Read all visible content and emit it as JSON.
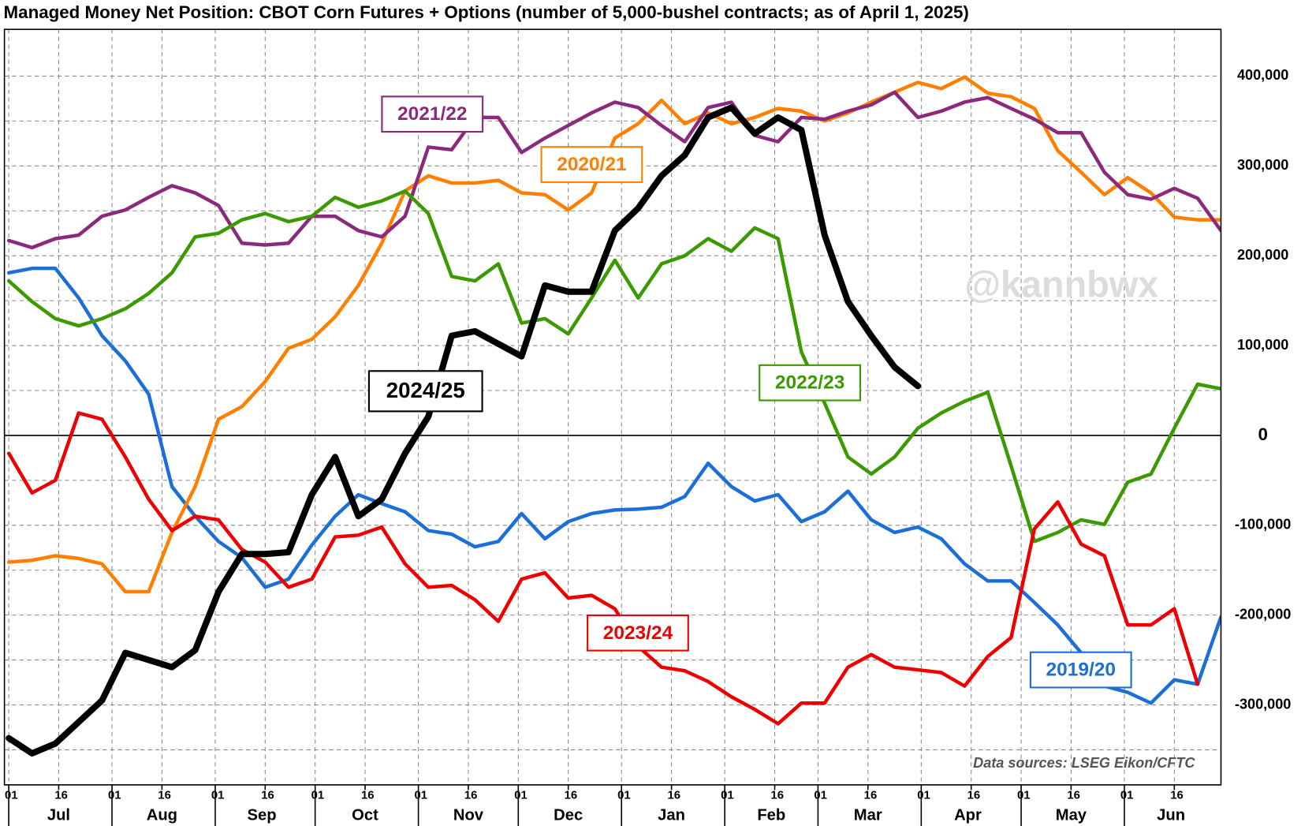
{
  "chart_data": {
    "type": "line",
    "title": "Managed Money Net Position: CBOT Corn Futures + Options (number of 5,000-bushel contracts; as of April 1, 2025)",
    "watermark": "@kannbwx",
    "source": "Data sources: LSEG Eikon/CFTC",
    "x": [
      0,
      7,
      14,
      21,
      28,
      35,
      42,
      49,
      56,
      63,
      70,
      77,
      84,
      91,
      98,
      105,
      112,
      119,
      126,
      133,
      140,
      147,
      154,
      161,
      168,
      175,
      182,
      189,
      196,
      203,
      210,
      217,
      224,
      231,
      238,
      245,
      252,
      259,
      266,
      273,
      280,
      287,
      294,
      301,
      308,
      315,
      322,
      329,
      336,
      343,
      350,
      357,
      364
    ],
    "xlim": [
      -1.3,
      364
    ],
    "xticks": [
      {
        "value": 0,
        "label": "01"
      },
      {
        "value": 15,
        "label": "16"
      },
      {
        "value": 31,
        "label": "01"
      },
      {
        "value": 46,
        "label": "16"
      },
      {
        "value": 62,
        "label": "01"
      },
      {
        "value": 77,
        "label": "16"
      },
      {
        "value": 92,
        "label": "01"
      },
      {
        "value": 107,
        "label": "16"
      },
      {
        "value": 123,
        "label": "01"
      },
      {
        "value": 138,
        "label": "16"
      },
      {
        "value": 153,
        "label": "01"
      },
      {
        "value": 168,
        "label": "16"
      },
      {
        "value": 184,
        "label": "01"
      },
      {
        "value": 199,
        "label": "16"
      },
      {
        "value": 215,
        "label": "01"
      },
      {
        "value": 230,
        "label": "16"
      },
      {
        "value": 243,
        "label": "01"
      },
      {
        "value": 258,
        "label": "16"
      },
      {
        "value": 274,
        "label": "01"
      },
      {
        "value": 289,
        "label": "16"
      },
      {
        "value": 304,
        "label": "01"
      },
      {
        "value": 319,
        "label": "16"
      },
      {
        "value": 335,
        "label": "01"
      },
      {
        "value": 350,
        "label": "16"
      }
    ],
    "months": [
      {
        "value": 15,
        "label": "Jul"
      },
      {
        "value": 46,
        "label": "Aug"
      },
      {
        "value": 76,
        "label": "Sep"
      },
      {
        "value": 107,
        "label": "Oct"
      },
      {
        "value": 138,
        "label": "Nov"
      },
      {
        "value": 168,
        "label": "Dec"
      },
      {
        "value": 199,
        "label": "Jan"
      },
      {
        "value": 229,
        "label": "Feb"
      },
      {
        "value": 258,
        "label": "Mar"
      },
      {
        "value": 288,
        "label": "Apr"
      },
      {
        "value": 319,
        "label": "May"
      },
      {
        "value": 349,
        "label": "Jun"
      }
    ],
    "ylim": [
      -389000,
      452000
    ],
    "yticks": [
      {
        "value": -300000,
        "label": "-300,000"
      },
      {
        "value": -200000,
        "label": "-200,000"
      },
      {
        "value": -100000,
        "label": "-100,000"
      },
      0,
      {
        "value": 100000,
        "label": "100,000"
      },
      {
        "value": 200000,
        "label": "200,000"
      },
      {
        "value": 300000,
        "label": "300,000"
      },
      {
        "value": 400000,
        "label": "400,000"
      }
    ],
    "ygrid_minor": [
      -350000,
      -250000,
      -150000,
      -50000,
      50000,
      150000,
      250000,
      350000
    ],
    "grid": true,
    "series": [
      {
        "name": "2019/20",
        "color": "#1c6fd8",
        "values": [
          181000,
          186000,
          186000,
          153000,
          111000,
          83000,
          46000,
          -57000,
          -90000,
          -118000,
          -136000,
          -169000,
          -160000,
          -122000,
          -90000,
          -66000,
          -76000,
          -85000,
          -106000,
          -110000,
          -124000,
          -118000,
          -87000,
          -115000,
          -96000,
          -87000,
          -83000,
          -82000,
          -80000,
          -68000,
          -31000,
          -57000,
          -73000,
          -66000,
          -96000,
          -85000,
          -62000,
          -94000,
          -108000,
          -102000,
          -115000,
          -143000,
          -162000,
          -162000,
          -186000,
          -211000,
          -242000,
          -279000,
          -286000,
          -298000,
          -272000,
          -277000,
          -202000
        ]
      },
      {
        "name": "2020/21",
        "color": "#ff8000",
        "values": [
          -141000,
          -139000,
          -134000,
          -137000,
          -143000,
          -174000,
          -174000,
          -108000,
          -57000,
          18000,
          32000,
          60000,
          97000,
          107000,
          132000,
          167000,
          214000,
          272000,
          289000,
          281000,
          281000,
          284000,
          270000,
          268000,
          251000,
          270000,
          331000,
          347000,
          373000,
          347000,
          359000,
          347000,
          354000,
          364000,
          361000,
          350000,
          359000,
          371000,
          382000,
          393000,
          386000,
          399000,
          381000,
          377000,
          364000,
          317000,
          293000,
          268000,
          287000,
          270000,
          243000,
          240000,
          240000
        ]
      },
      {
        "name": "2021/22",
        "color": "#8b2a7c",
        "values": [
          217000,
          209000,
          219000,
          223000,
          244000,
          251000,
          265000,
          278000,
          270000,
          256000,
          214000,
          212000,
          214000,
          244000,
          244000,
          228000,
          221000,
          244000,
          321000,
          318000,
          354000,
          354000,
          315000,
          331000,
          345000,
          359000,
          371000,
          365000,
          345000,
          327000,
          365000,
          371000,
          334000,
          327000,
          354000,
          352000,
          361000,
          368000,
          382000,
          354000,
          361000,
          371000,
          376000,
          364000,
          352000,
          337000,
          337000,
          293000,
          268000,
          263000,
          275000,
          264000,
          228000
        ]
      },
      {
        "name": "2022/23",
        "color": "#3a9a00",
        "values": [
          172000,
          149000,
          130000,
          122000,
          130000,
          141000,
          158000,
          181000,
          221000,
          225000,
          240000,
          247000,
          238000,
          244000,
          265000,
          254000,
          261000,
          272000,
          247000,
          177000,
          172000,
          191000,
          125000,
          130000,
          113000,
          153000,
          195000,
          153000,
          191000,
          200000,
          219000,
          205000,
          231000,
          219000,
          93000,
          36000,
          -24000,
          -43000,
          -24000,
          8000,
          25000,
          38000,
          48000,
          -34000,
          -118000,
          -108000,
          -94000,
          -99000,
          -52000,
          -43000,
          8000,
          57000,
          52000
        ]
      },
      {
        "name": "2023/24",
        "color": "#ee0000",
        "values": [
          -20000,
          -64000,
          -50000,
          25000,
          18000,
          -24000,
          -71000,
          -106000,
          -90000,
          -94000,
          -127000,
          -141000,
          -169000,
          -160000,
          -113000,
          -111000,
          -102000,
          -143000,
          -169000,
          -167000,
          -183000,
          -207000,
          -160000,
          -153000,
          -181000,
          -178000,
          -193000,
          -235000,
          -258000,
          -262000,
          -274000,
          -291000,
          -305000,
          -321000,
          -298000,
          -298000,
          -258000,
          -244000,
          -258000,
          -261000,
          -264000,
          -279000,
          -246000,
          -225000,
          -104000,
          -74000,
          -121000,
          -134000,
          -211000,
          -211000,
          -193000,
          -277000,
          null
        ]
      },
      {
        "name": "2024/25",
        "color": "#000000",
        "values": [
          -337000,
          -354000,
          -343000,
          -319000,
          -295000,
          -242000,
          -250000,
          -258000,
          -239000,
          -174000,
          -132000,
          -132000,
          -130000,
          -66000,
          -24000,
          -90000,
          -71000,
          -20000,
          21000,
          111000,
          116000,
          102000,
          88000,
          167000,
          160000,
          160000,
          228000,
          253000,
          289000,
          312000,
          354000,
          365000,
          336000,
          354000,
          340000,
          223000,
          149000,
          111000,
          76000,
          55000,
          null,
          null,
          null,
          null,
          null,
          null,
          null,
          null,
          null,
          null,
          null,
          null,
          null
        ]
      }
    ]
  }
}
